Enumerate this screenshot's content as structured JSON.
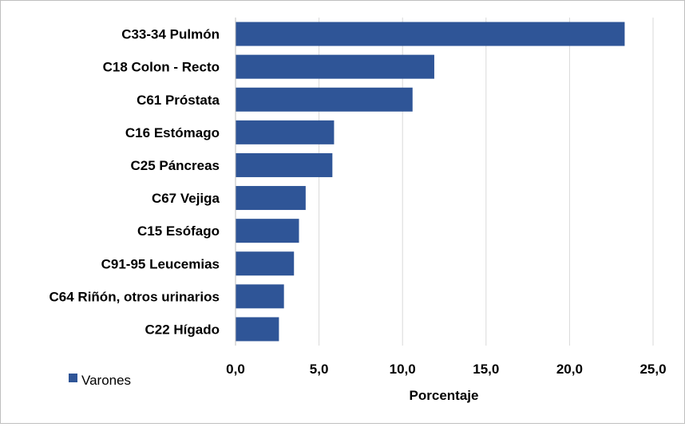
{
  "chart_data": {
    "type": "bar",
    "orientation": "horizontal",
    "categories": [
      "C33-34 Pulmón",
      "C18 Colon - Recto",
      "C61 Próstata",
      "C16 Estómago",
      "C25 Páncreas",
      "C67 Vejiga",
      "C15 Esófago",
      "C91-95 Leucemias",
      "C64 Riñón, otros urinarios",
      "C22 Hígado"
    ],
    "series": [
      {
        "name": "Varones",
        "color": "#2f5597",
        "values": [
          23.3,
          11.9,
          10.6,
          5.9,
          5.8,
          4.2,
          3.8,
          3.5,
          2.9,
          2.6
        ]
      }
    ],
    "xlabel": "Porcentaje",
    "ylabel": "",
    "xlim": [
      0,
      25
    ],
    "xticks": [
      "0,0",
      "5,0",
      "10,0",
      "15,0",
      "20,0",
      "25,0"
    ],
    "grid": "vertical",
    "legend": "bottom-left"
  }
}
